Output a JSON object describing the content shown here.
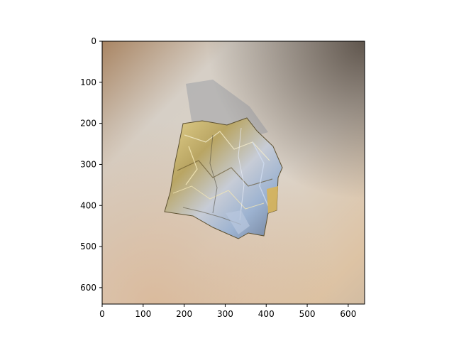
{
  "image": {
    "subject": "crumpled-aluminum-foil",
    "background_color": "#d9cdbd",
    "foil_colors": [
      "#c9b46a",
      "#a9b8cc",
      "#e8d79a",
      "#8c7a3e"
    ]
  },
  "axes": {
    "x_ticks": [
      0,
      100,
      200,
      300,
      400,
      500,
      600
    ],
    "y_ticks": [
      0,
      100,
      200,
      300,
      400,
      500,
      600
    ],
    "x_range": [
      0,
      640
    ],
    "y_range": [
      0,
      640
    ],
    "y_inverted": true
  }
}
